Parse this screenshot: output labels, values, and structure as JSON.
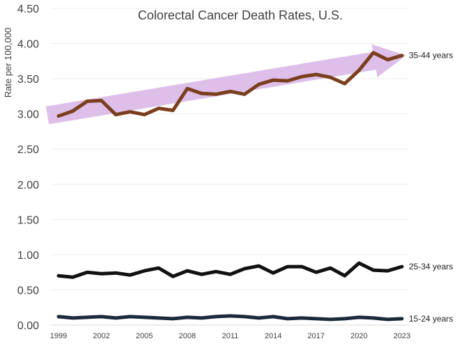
{
  "chart_data": {
    "type": "line",
    "title": "Colorectal Cancer Death Rates, U.S.",
    "xlabel": "",
    "ylabel": "Rate per 100,000",
    "ylim": [
      0,
      4.5
    ],
    "yticks": [
      "0.00",
      "0.50",
      "1.00",
      "1.50",
      "2.00",
      "2.50",
      "3.00",
      "3.50",
      "4.00",
      "4.50"
    ],
    "x": [
      1999,
      2000,
      2001,
      2002,
      2003,
      2004,
      2005,
      2006,
      2007,
      2008,
      2009,
      2010,
      2011,
      2012,
      2013,
      2014,
      2015,
      2016,
      2017,
      2018,
      2019,
      2020,
      2021,
      2022,
      2023
    ],
    "xticks": [
      "1999",
      "2002",
      "2005",
      "2008",
      "2011",
      "2014",
      "2017",
      "2020",
      "2023"
    ],
    "grid": true,
    "series": [
      {
        "name": "35-44 years",
        "color": "#7b3f1e",
        "values": [
          2.97,
          3.04,
          3.18,
          3.19,
          2.99,
          3.03,
          2.99,
          3.08,
          3.05,
          3.36,
          3.29,
          3.28,
          3.32,
          3.28,
          3.42,
          3.48,
          3.47,
          3.53,
          3.56,
          3.52,
          3.43,
          3.62,
          3.87,
          3.77,
          3.83
        ]
      },
      {
        "name": "25-34 years",
        "color": "#111111",
        "values": [
          0.7,
          0.68,
          0.75,
          0.73,
          0.74,
          0.71,
          0.77,
          0.81,
          0.69,
          0.77,
          0.72,
          0.76,
          0.72,
          0.8,
          0.84,
          0.74,
          0.83,
          0.83,
          0.75,
          0.81,
          0.7,
          0.88,
          0.78,
          0.77,
          0.83
        ]
      },
      {
        "name": "15-24 years",
        "color": "#1b2a3b",
        "values": [
          0.12,
          0.1,
          0.11,
          0.12,
          0.1,
          0.12,
          0.11,
          0.1,
          0.09,
          0.11,
          0.1,
          0.12,
          0.13,
          0.12,
          0.1,
          0.12,
          0.09,
          0.1,
          0.09,
          0.08,
          0.09,
          0.11,
          0.1,
          0.08,
          0.09
        ]
      }
    ],
    "trend_arrow": {
      "from": {
        "x": 1999,
        "y": 2.98
      },
      "to": {
        "x": 2023,
        "y": 3.83
      },
      "color": "#d7b4e6"
    }
  }
}
